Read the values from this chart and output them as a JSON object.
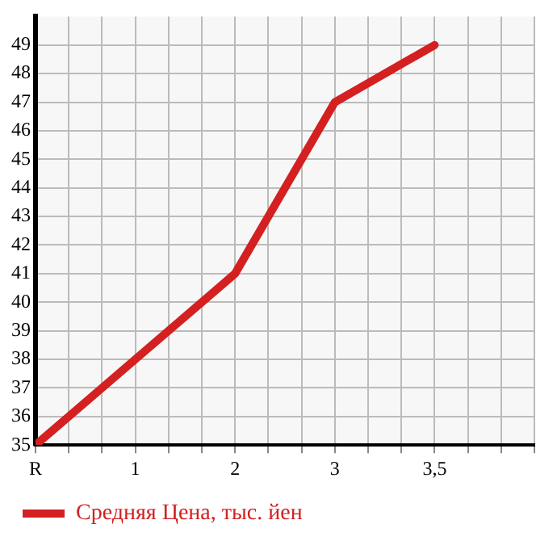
{
  "chart_data": {
    "type": "line",
    "categories": [
      "R",
      "1",
      "2",
      "3",
      "3,5"
    ],
    "series": [
      {
        "name": "Средняя Цена, тыс. йен",
        "color": "#d42020",
        "values": [
          35,
          38,
          41,
          47,
          49
        ]
      }
    ],
    "ylim": [
      35,
      50
    ],
    "yticks": [
      35,
      36,
      37,
      38,
      39,
      40,
      41,
      42,
      43,
      44,
      45,
      46,
      47,
      48,
      49
    ],
    "grid": true,
    "legend": "bottom",
    "marker": "none"
  }
}
